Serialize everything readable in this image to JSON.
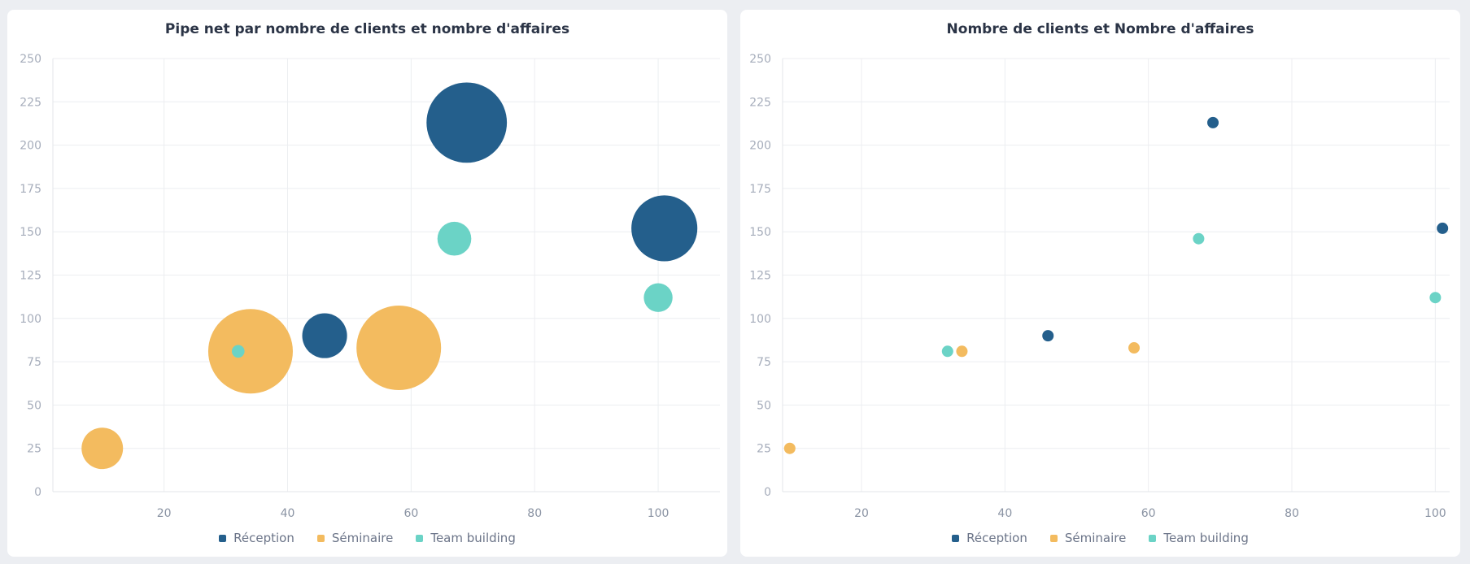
{
  "chart_data": [
    {
      "type": "bubble",
      "title": "Pipe net par nombre de clients et nombre d'affaires",
      "xlabel": "",
      "ylabel": "",
      "xlim": [
        2,
        110
      ],
      "ylim": [
        0,
        250
      ],
      "xticks": [
        20,
        40,
        60,
        80,
        100
      ],
      "yticks": [
        0,
        25,
        50,
        75,
        100,
        125,
        150,
        175,
        200,
        225,
        250
      ],
      "grid": true,
      "legend_position": "bottom",
      "series": [
        {
          "name": "Réception",
          "color": "#245f8c",
          "points": [
            {
              "x": 69,
              "y": 213,
              "size": 0.95
            },
            {
              "x": 101,
              "y": 152,
              "size": 0.78
            },
            {
              "x": 46,
              "y": 90,
              "size": 0.53
            }
          ]
        },
        {
          "name": "Séminaire",
          "color": "#f3bb5f",
          "points": [
            {
              "x": 34,
              "y": 81,
              "size": 1.0
            },
            {
              "x": 58,
              "y": 83,
              "size": 1.0
            },
            {
              "x": 10,
              "y": 25,
              "size": 0.49
            }
          ]
        },
        {
          "name": "Team building",
          "color": "#6bd3c6",
          "points": [
            {
              "x": 67,
              "y": 146,
              "size": 0.4
            },
            {
              "x": 100,
              "y": 112,
              "size": 0.34
            },
            {
              "x": 32,
              "y": 81,
              "size": 0.15
            }
          ]
        }
      ]
    },
    {
      "type": "scatter",
      "title": "Nombre de clients et Nombre d'affaires",
      "xlabel": "",
      "ylabel": "",
      "xlim": [
        9,
        102
      ],
      "ylim": [
        0,
        250
      ],
      "xticks": [
        20,
        40,
        60,
        80,
        100
      ],
      "yticks": [
        0,
        25,
        50,
        75,
        100,
        125,
        150,
        175,
        200,
        225,
        250
      ],
      "grid": true,
      "legend_position": "bottom",
      "series": [
        {
          "name": "Réception",
          "color": "#245f8c",
          "points": [
            {
              "x": 69,
              "y": 213
            },
            {
              "x": 101,
              "y": 152
            },
            {
              "x": 46,
              "y": 90
            }
          ]
        },
        {
          "name": "Séminaire",
          "color": "#f3bb5f",
          "points": [
            {
              "x": 34,
              "y": 81
            },
            {
              "x": 58,
              "y": 83
            },
            {
              "x": 10,
              "y": 25
            }
          ]
        },
        {
          "name": "Team building",
          "color": "#6bd3c6",
          "points": [
            {
              "x": 67,
              "y": 146
            },
            {
              "x": 100,
              "y": 112
            },
            {
              "x": 32,
              "y": 81
            }
          ]
        }
      ]
    }
  ]
}
